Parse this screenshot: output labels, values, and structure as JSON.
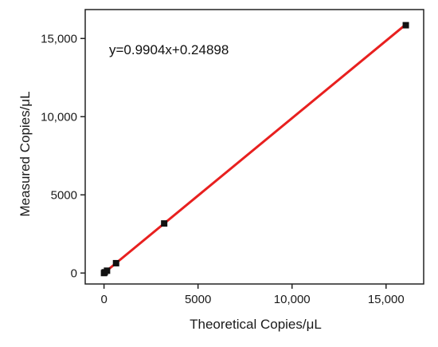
{
  "chart_data": {
    "type": "scatter",
    "xlabel": "Theoretical Copies/μL",
    "ylabel": "Measured Copies/μL",
    "xlim": [
      -1000,
      17000
    ],
    "ylim": [
      -700,
      16850
    ],
    "x_ticks": [
      0,
      5000,
      10000,
      15000
    ],
    "x_tick_labels": [
      "0",
      "5000",
      "10,000",
      "15,000"
    ],
    "y_ticks": [
      0,
      5000,
      10000,
      15000
    ],
    "y_tick_labels": [
      "0",
      "5000",
      "10,000",
      "15,000"
    ],
    "grid": false,
    "legend": "none",
    "annotation": "y=0.9904x+0.24898",
    "fit": {
      "slope": 0.9904,
      "intercept": 0.24898,
      "x_range": [
        0,
        16050
      ]
    },
    "points": [
      {
        "x": 0,
        "y": 0
      },
      {
        "x": 40,
        "y": 50
      },
      {
        "x": 160,
        "y": 150
      },
      {
        "x": 640,
        "y": 630
      },
      {
        "x": 3200,
        "y": 3170
      },
      {
        "x": 16050,
        "y": 15850
      }
    ],
    "colors": {
      "fit_line": "#e8201f",
      "marker": "#111111",
      "axis": "#222222"
    }
  }
}
